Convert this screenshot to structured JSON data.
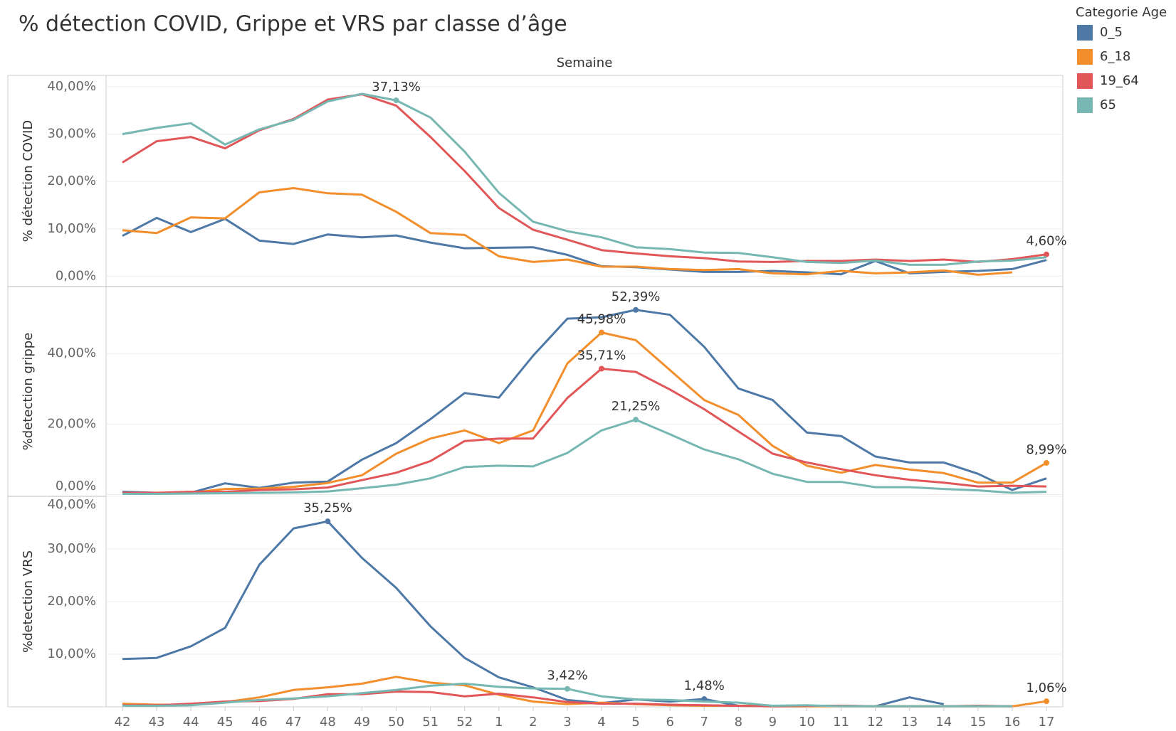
{
  "title": "% détection COVID, Grippe et VRS par classe d’âge",
  "legend_title": "Categorie Age",
  "x_label": "Semaine",
  "categories": [
    "42",
    "43",
    "44",
    "45",
    "46",
    "47",
    "48",
    "49",
    "50",
    "51",
    "52",
    "1",
    "2",
    "3",
    "4",
    "5",
    "6",
    "7",
    "8",
    "9",
    "10",
    "11",
    "12",
    "13",
    "14",
    "15",
    "16",
    "17"
  ],
  "chart_data": [
    {
      "type": "line",
      "y_label": "% détection COVID",
      "ylim": [
        -2.2,
        42.4
      ],
      "grid": true,
      "yticks": [
        {
          "value": 0,
          "label": "0,00%"
        },
        {
          "value": 10,
          "label": "10,00%"
        },
        {
          "value": 20,
          "label": "20,00%"
        },
        {
          "value": 30,
          "label": "30,00%"
        },
        {
          "value": 40,
          "label": "40,00%"
        }
      ],
      "series": [
        {
          "name": "0_5",
          "color": "#4e79a7",
          "values": [
            8.5,
            12.3,
            9.3,
            12.1,
            7.5,
            6.8,
            8.8,
            8.2,
            8.6,
            7.1,
            5.9,
            6.0,
            6.1,
            4.5,
            2.1,
            1.9,
            1.4,
            0.9,
            0.9,
            1.1,
            0.8,
            0.4,
            3.2,
            0.6,
            0.9,
            1.1,
            1.5,
            3.4
          ],
          "value_labels": [
            null,
            null,
            null,
            null,
            null,
            null,
            null,
            null,
            null,
            null,
            null,
            null,
            null,
            null,
            null,
            null,
            null,
            null,
            null,
            null,
            null,
            null,
            null,
            null,
            null,
            null,
            null,
            null
          ]
        },
        {
          "name": "6_18",
          "color": "#f28e2b",
          "values": [
            9.7,
            9.1,
            12.4,
            12.2,
            17.7,
            18.6,
            17.5,
            17.2,
            13.6,
            9.1,
            8.7,
            4.2,
            3.0,
            3.5,
            2.0,
            2.0,
            1.5,
            1.3,
            1.5,
            0.6,
            0.4,
            1.1,
            0.6,
            0.8,
            1.2,
            0.3,
            0.8,
            null
          ],
          "value_labels": [
            null,
            null,
            null,
            null,
            null,
            null,
            null,
            null,
            null,
            null,
            null,
            null,
            null,
            null,
            null,
            null,
            null,
            null,
            null,
            null,
            null,
            null,
            null,
            null,
            null,
            null,
            null,
            null
          ]
        },
        {
          "name": "19_64",
          "color": "#e15759",
          "values": [
            24.0,
            28.5,
            29.4,
            27.0,
            30.8,
            33.2,
            37.3,
            38.4,
            36.0,
            29.4,
            22.2,
            14.4,
            9.8,
            7.7,
            5.5,
            4.8,
            4.2,
            3.8,
            3.1,
            3.0,
            3.2,
            3.2,
            3.5,
            3.2,
            3.5,
            3.0,
            3.6,
            4.6
          ],
          "value_labels": [
            null,
            null,
            null,
            null,
            null,
            null,
            null,
            null,
            null,
            null,
            null,
            null,
            null,
            null,
            null,
            null,
            null,
            null,
            null,
            null,
            null,
            null,
            null,
            null,
            null,
            null,
            null,
            "4,60%"
          ]
        },
        {
          "name": "65",
          "color": "#76b7b2",
          "values": [
            30.0,
            31.3,
            32.3,
            27.8,
            31.0,
            33.0,
            36.9,
            38.5,
            37.13,
            33.5,
            26.3,
            17.6,
            11.5,
            9.5,
            8.2,
            6.1,
            5.7,
            5.0,
            4.9,
            4.0,
            3.0,
            2.8,
            3.3,
            2.4,
            2.4,
            3.1,
            3.3,
            4.0
          ],
          "value_labels": [
            null,
            null,
            null,
            null,
            null,
            null,
            null,
            null,
            "37,13%",
            null,
            null,
            null,
            null,
            null,
            null,
            null,
            null,
            null,
            null,
            null,
            null,
            null,
            null,
            null,
            null,
            null,
            null,
            null
          ]
        }
      ]
    },
    {
      "type": "line",
      "y_label": "%detection grippe",
      "ylim": [
        -0.5,
        59
      ],
      "grid": true,
      "yticks": [
        {
          "value": 0,
          "label": "0,00%"
        },
        {
          "value": 20,
          "label": "20,00%"
        },
        {
          "value": 40,
          "label": "40,00%"
        }
      ],
      "series": [
        {
          "name": "0_5",
          "color": "#4e79a7",
          "values": [
            0.8,
            0.5,
            0.5,
            3.2,
            1.9,
            3.4,
            3.7,
            9.9,
            14.6,
            21.4,
            28.8,
            27.5,
            39.4,
            49.9,
            50.3,
            52.39,
            51.0,
            41.9,
            30.1,
            26.8,
            17.6,
            16.6,
            10.8,
            9.1,
            9.1,
            5.9,
            1.3,
            4.6
          ],
          "value_labels": [
            null,
            null,
            null,
            null,
            null,
            null,
            null,
            null,
            null,
            null,
            null,
            null,
            null,
            null,
            null,
            "52,39%",
            null,
            null,
            null,
            null,
            null,
            null,
            null,
            null,
            null,
            null,
            null,
            null
          ]
        },
        {
          "name": "6_18",
          "color": "#f28e2b",
          "values": [
            0.3,
            0.3,
            0.5,
            1.6,
            1.7,
            2.2,
            3.3,
            5.5,
            11.6,
            15.9,
            18.2,
            14.6,
            18.2,
            37.2,
            45.98,
            43.8,
            35.3,
            26.8,
            22.6,
            13.8,
            8.2,
            6.2,
            8.4,
            7.1,
            6.1,
            3.4,
            3.4,
            8.99
          ],
          "value_labels": [
            null,
            null,
            null,
            null,
            null,
            null,
            null,
            null,
            null,
            null,
            null,
            null,
            null,
            null,
            "45,98%",
            null,
            null,
            null,
            null,
            null,
            null,
            null,
            null,
            null,
            null,
            null,
            null,
            "8,99%"
          ]
        },
        {
          "name": "19_64",
          "color": "#e15759",
          "values": [
            0.5,
            0.5,
            0.8,
            0.8,
            1.3,
            1.5,
            2.0,
            4.1,
            6.2,
            9.5,
            15.2,
            15.9,
            15.9,
            27.4,
            35.71,
            34.8,
            29.8,
            24.2,
            17.9,
            11.6,
            9.1,
            7.2,
            5.5,
            4.2,
            3.4,
            2.3,
            2.5,
            2.3
          ],
          "value_labels": [
            null,
            null,
            null,
            null,
            null,
            null,
            null,
            null,
            null,
            null,
            null,
            null,
            null,
            null,
            "35,71%",
            null,
            null,
            null,
            null,
            null,
            null,
            null,
            null,
            null,
            null,
            null,
            null,
            null
          ]
        },
        {
          "name": "65",
          "color": "#76b7b2",
          "values": [
            0.2,
            0.2,
            0.3,
            0.4,
            0.5,
            0.6,
            0.9,
            1.8,
            2.8,
            4.6,
            7.8,
            8.2,
            8.0,
            11.8,
            18.2,
            21.25,
            17.1,
            12.8,
            10.0,
            5.9,
            3.6,
            3.6,
            2.1,
            2.1,
            1.6,
            1.2,
            0.5,
            0.8
          ],
          "value_labels": [
            null,
            null,
            null,
            null,
            null,
            null,
            null,
            null,
            null,
            null,
            null,
            null,
            null,
            null,
            null,
            "21,25%",
            null,
            null,
            null,
            null,
            null,
            null,
            null,
            null,
            null,
            null,
            null,
            null
          ]
        }
      ]
    },
    {
      "type": "line",
      "y_label": "%detection VRS",
      "ylim": [
        0,
        40
      ],
      "grid": true,
      "yticks": [
        {
          "value": 10,
          "label": "10,00%"
        },
        {
          "value": 20,
          "label": "20,00%"
        },
        {
          "value": 30,
          "label": "30,00%"
        },
        {
          "value": 40,
          "label": "40,00%"
        }
      ],
      "series": [
        {
          "name": "0_5",
          "color": "#4e79a7",
          "values": [
            9.1,
            9.3,
            11.5,
            15.0,
            27.0,
            33.9,
            35.25,
            28.3,
            22.6,
            15.3,
            9.3,
            5.6,
            3.7,
            1.3,
            0.7,
            1.4,
            1.0,
            1.48,
            0.2,
            0.1,
            0.1,
            0.2,
            0.1,
            1.8,
            0.5,
            null,
            null,
            null
          ],
          "value_labels": [
            null,
            null,
            null,
            null,
            null,
            null,
            "35,25%",
            null,
            null,
            null,
            null,
            null,
            null,
            null,
            null,
            null,
            null,
            "1,48%",
            null,
            null,
            null,
            null,
            null,
            null,
            null,
            null,
            null,
            null
          ]
        },
        {
          "name": "6_18",
          "color": "#f28e2b",
          "values": [
            0.6,
            0.4,
            0.4,
            0.9,
            1.8,
            3.2,
            3.7,
            4.4,
            5.7,
            4.6,
            4.1,
            2.3,
            1.0,
            0.5,
            0.8,
            0.5,
            0.3,
            0.2,
            0.2,
            0.1,
            0.1,
            0.1,
            0.1,
            0.1,
            0.1,
            0.1,
            0.1,
            1.06
          ],
          "value_labels": [
            null,
            null,
            null,
            null,
            null,
            null,
            null,
            null,
            null,
            null,
            null,
            null,
            null,
            null,
            null,
            null,
            null,
            null,
            null,
            null,
            null,
            null,
            null,
            null,
            null,
            null,
            null,
            "1,06%"
          ]
        },
        {
          "name": "19_64",
          "color": "#e15759",
          "values": [
            0.3,
            0.3,
            0.6,
            1.0,
            1.1,
            1.5,
            2.4,
            2.4,
            2.9,
            2.8,
            2.0,
            2.5,
            1.8,
            0.9,
            0.6,
            0.6,
            0.4,
            0.3,
            0.2,
            0.1,
            0.2,
            0.2,
            0.1,
            0.1,
            0.1,
            0.2,
            0.1,
            null
          ],
          "value_labels": [
            null,
            null,
            null,
            null,
            null,
            null,
            null,
            null,
            null,
            null,
            null,
            null,
            null,
            null,
            null,
            null,
            null,
            null,
            null,
            null,
            null,
            null,
            null,
            null,
            null,
            null,
            null,
            null
          ]
        },
        {
          "name": "65",
          "color": "#76b7b2",
          "values": [
            0.2,
            0.2,
            0.3,
            0.8,
            1.3,
            1.6,
            2.0,
            2.6,
            3.2,
            4.0,
            4.4,
            3.8,
            3.5,
            3.42,
            2.0,
            1.4,
            1.3,
            1.0,
            0.8,
            0.2,
            0.3,
            0.1,
            0.1,
            0.1,
            0.1,
            0.1,
            0.1,
            null
          ],
          "value_labels": [
            null,
            null,
            null,
            null,
            null,
            null,
            null,
            null,
            null,
            null,
            null,
            null,
            null,
            "3,42%",
            null,
            null,
            null,
            null,
            null,
            null,
            null,
            null,
            null,
            null,
            null,
            null,
            null,
            null
          ]
        }
      ]
    }
  ]
}
